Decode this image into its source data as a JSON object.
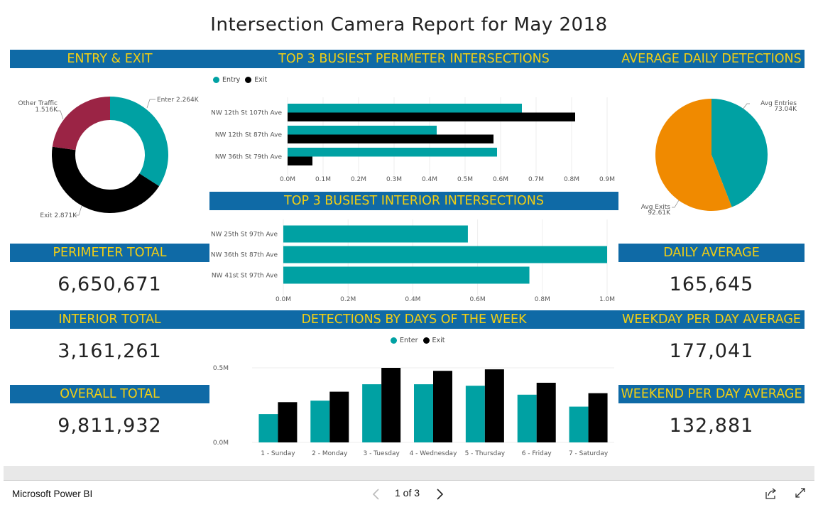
{
  "report": {
    "title": "Intersection Camera Report for May 2018"
  },
  "colors": {
    "teal": "#00A1A3",
    "black": "#000000",
    "maroon": "#9B2445",
    "orange": "#F08A00",
    "band": "#0F6AA6",
    "bandText": "#F3CF13"
  },
  "bands": {
    "entry_exit": "ENTRY & EXIT",
    "perimeter_busiest": "TOP 3 BUSIEST PERIMETER INTERSECTIONS",
    "avg_daily": "AVERAGE DAILY DETECTIONS",
    "interior_busiest": "TOP 3 BUSIEST INTERIOR INTERSECTIONS",
    "perimeter_total": "PERIMETER TOTAL",
    "daily_average": "DAILY AVERAGE",
    "interior_total": "INTERIOR TOTAL",
    "days_of_week": "DETECTIONS BY DAYS OF THE WEEK",
    "weekday_avg": "WEEKDAY PER DAY AVERAGE",
    "overall_total": "OVERALL TOTAL",
    "weekend_avg": "WEEKEND PER DAY AVERAGE"
  },
  "kpis": {
    "perimeter_total": "6,650,671",
    "daily_average": "165,645",
    "interior_total": "3,161,261",
    "weekday_avg": "177,041",
    "overall_total": "9,811,932",
    "weekend_avg": "132,881"
  },
  "legends": {
    "entry": "Entry",
    "exit": "Exit",
    "enter": "Enter",
    "exit2": "Exit"
  },
  "chart_data": [
    {
      "type": "pie",
      "title": "ENTRY & EXIT",
      "donut": true,
      "slices": [
        {
          "label": "Enter",
          "value": 2264,
          "display": "Enter 2.264K",
          "color": "#00A1A3"
        },
        {
          "label": "Exit",
          "value": 2871,
          "display": "Exit 2.871K",
          "color": "#000000"
        },
        {
          "label": "Other Traffic",
          "value": 1516,
          "display_name": "Other Traffic",
          "display_value": "1.516K",
          "color": "#9B2445"
        }
      ]
    },
    {
      "type": "bar",
      "orientation": "horizontal",
      "title": "TOP 3 BUSIEST PERIMETER INTERSECTIONS",
      "categories": [
        "NW 12th St 107th Ave",
        "NW 12th St 87th Ave",
        "NW 36th St 79th Ave"
      ],
      "series": [
        {
          "name": "Entry",
          "values": [
            0.66,
            0.42,
            0.59
          ],
          "color": "#00A1A3"
        },
        {
          "name": "Exit",
          "values": [
            0.81,
            0.58,
            0.07
          ],
          "color": "#000000"
        }
      ],
      "ticks": [
        "0.0M",
        "0.1M",
        "0.2M",
        "0.3M",
        "0.4M",
        "0.5M",
        "0.6M",
        "0.7M",
        "0.8M",
        "0.9M"
      ],
      "xlim": [
        0,
        0.9
      ]
    },
    {
      "type": "pie",
      "title": "AVERAGE DAILY DETECTIONS",
      "slices": [
        {
          "label": "Avg Entries",
          "value": 73.04,
          "display_value": "73.04K",
          "color": "#00A1A3"
        },
        {
          "label": "Avg Exits",
          "value": 92.61,
          "display_value": "92.61K",
          "color": "#F08A00"
        }
      ]
    },
    {
      "type": "bar",
      "orientation": "horizontal",
      "title": "TOP 3 BUSIEST INTERIOR INTERSECTIONS",
      "categories": [
        "NW 25th St 97th Ave",
        "NW 36th St 87th Ave",
        "NW 41st St 97th Ave"
      ],
      "series": [
        {
          "name": "Total",
          "values": [
            0.57,
            1.0,
            0.76
          ],
          "color": "#00A1A3"
        }
      ],
      "ticks": [
        "0.0M",
        "0.2M",
        "0.4M",
        "0.6M",
        "0.8M",
        "1.0M"
      ],
      "xlim": [
        0,
        1.0
      ]
    },
    {
      "type": "bar",
      "title": "DETECTIONS BY DAYS OF THE WEEK",
      "categories": [
        "1 - Sunday",
        "2 - Monday",
        "3 - Tuesday",
        "4 - Wednesday",
        "5 - Thursday",
        "6 - Friday",
        "7 - Saturday"
      ],
      "series": [
        {
          "name": "Enter",
          "values": [
            0.19,
            0.28,
            0.39,
            0.39,
            0.38,
            0.32,
            0.24
          ],
          "color": "#00A1A3"
        },
        {
          "name": "Exit",
          "values": [
            0.27,
            0.34,
            0.5,
            0.48,
            0.49,
            0.4,
            0.33
          ],
          "color": "#000000"
        }
      ],
      "ticks": [
        "0.0M",
        "0.5M"
      ],
      "ylim": [
        0,
        0.5
      ]
    }
  ],
  "footer": {
    "brand": "Microsoft Power BI",
    "page": "1 of 3"
  }
}
